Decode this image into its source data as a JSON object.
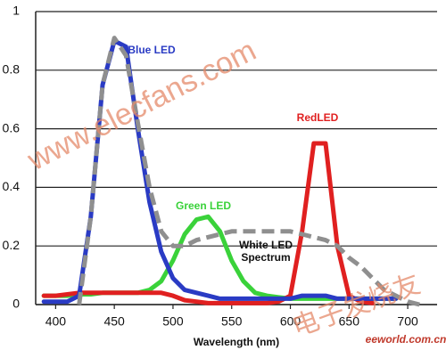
{
  "chart_data": {
    "type": "line",
    "x_label": "Wavelength (nm)",
    "x": [
      390,
      400,
      410,
      420,
      430,
      440,
      450,
      460,
      470,
      480,
      490,
      500,
      510,
      520,
      530,
      540,
      550,
      560,
      570,
      580,
      590,
      600,
      610,
      620,
      630,
      640,
      650,
      660,
      670,
      680,
      690,
      700,
      710
    ],
    "series": [
      {
        "name": "Blue LED",
        "color": "#2a3bc4",
        "dashed": false,
        "values": [
          0.01,
          0.01,
          0.01,
          0.03,
          0.3,
          0.75,
          0.9,
          0.88,
          0.6,
          0.35,
          0.18,
          0.09,
          0.05,
          0.04,
          0.03,
          0.02,
          0.02,
          0.02,
          0.02,
          0.02,
          0.02,
          0.02,
          0.03,
          0.03,
          0.03,
          0.02,
          0.02,
          0.02,
          0.02,
          0.02,
          0.02,
          null,
          null
        ]
      },
      {
        "name": "Green LED",
        "color": "#3ad23a",
        "dashed": false,
        "values": [
          0.03,
          0.03,
          0.03,
          0.035,
          0.035,
          0.04,
          0.04,
          0.04,
          0.04,
          0.05,
          0.08,
          0.15,
          0.24,
          0.29,
          0.3,
          0.25,
          0.15,
          0.08,
          0.04,
          0.03,
          0.025,
          0.02,
          0.02,
          0.02,
          0.02,
          0.02,
          0.02,
          0.02,
          0.02,
          0.02,
          0.02,
          null,
          null
        ]
      },
      {
        "name": "RedLED",
        "color": "#e02020",
        "dashed": false,
        "values": [
          0.03,
          0.03,
          0.035,
          0.04,
          0.04,
          0.04,
          0.04,
          0.04,
          0.04,
          0.04,
          0.04,
          0.03,
          0.015,
          0.01,
          0.005,
          0.005,
          0.005,
          0.005,
          0.005,
          0.005,
          0.01,
          0.03,
          0.25,
          0.55,
          0.55,
          0.2,
          0.03,
          0.01,
          0.005,
          null,
          null,
          null,
          null
        ]
      },
      {
        "name": "White LED Spectrum",
        "color": "#8f8f8f",
        "dashed": true,
        "values": [
          null,
          null,
          null,
          0.0,
          0.3,
          0.75,
          0.91,
          0.85,
          0.62,
          0.4,
          0.25,
          0.2,
          0.2,
          0.22,
          0.23,
          0.24,
          0.25,
          0.25,
          0.25,
          0.25,
          0.25,
          0.25,
          0.24,
          0.23,
          0.22,
          0.2,
          0.16,
          0.13,
          0.09,
          0.05,
          0.03,
          0.01,
          0.0
        ]
      }
    ],
    "xlim": [
      383,
      725
    ],
    "xticks": [
      400,
      450,
      500,
      550,
      600,
      650,
      700
    ],
    "ylim": [
      0,
      1
    ],
    "yticks": [
      0,
      0.2,
      0.4,
      0.6,
      0.8,
      1
    ],
    "grid": true,
    "watermarks": [
      "www.elecfans.com",
      "电子发烧友",
      "eeworld.com.cn"
    ]
  }
}
